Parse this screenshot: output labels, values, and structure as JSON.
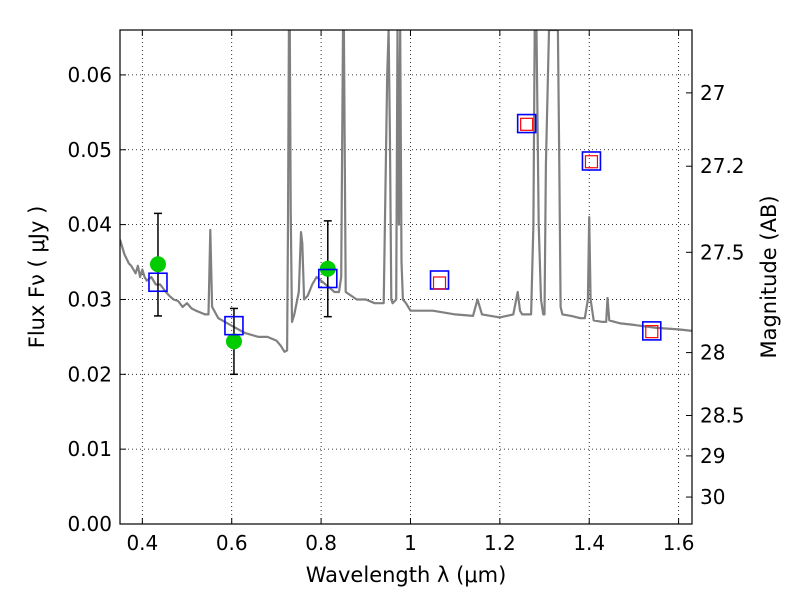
{
  "chart_data": {
    "type": "scatter",
    "title": "",
    "xlabel": "Wavelength  λ (μm)",
    "ylabel": "Flux  Fν  ( μJy )",
    "ylabel_right": "Magnitude (AB)",
    "xlim": [
      0.35,
      1.63
    ],
    "ylim": [
      0.0,
      0.066
    ],
    "grid": true,
    "x_ticks": [
      0.4,
      0.6,
      0.8,
      1.0,
      1.2,
      1.4,
      1.6
    ],
    "x_tick_labels": [
      "0.4",
      "0.6",
      "0.8",
      "1",
      "1.2",
      "1.4",
      "1.6"
    ],
    "y_ticks": [
      0.0,
      0.01,
      0.02,
      0.03,
      0.04,
      0.05,
      0.06
    ],
    "y_tick_labels": [
      "0.00",
      "0.01",
      "0.02",
      "0.03",
      "0.04",
      "0.05",
      "0.06"
    ],
    "right_ticks": [
      {
        "flux": 0.0576,
        "label": "27"
      },
      {
        "flux": 0.0478,
        "label": "27.2"
      },
      {
        "flux": 0.0363,
        "label": "27.5"
      },
      {
        "flux": 0.0229,
        "label": "28"
      },
      {
        "flux": 0.0145,
        "label": "28.5"
      },
      {
        "flux": 0.0091,
        "label": "29"
      },
      {
        "flux": 0.0036,
        "label": "30"
      }
    ],
    "series": [
      {
        "kind": "spectrum",
        "color": "#808080",
        "x": [
          0.35,
          0.36,
          0.37,
          0.375,
          0.38,
          0.385,
          0.39,
          0.395,
          0.4,
          0.405,
          0.41,
          0.42,
          0.43,
          0.44,
          0.45,
          0.46,
          0.47,
          0.48,
          0.49,
          0.5,
          0.51,
          0.52,
          0.54,
          0.548,
          0.552,
          0.556,
          0.57,
          0.6,
          0.63,
          0.66,
          0.68,
          0.7,
          0.71,
          0.718,
          0.724,
          0.726,
          0.728,
          0.73,
          0.732,
          0.735,
          0.74,
          0.75,
          0.755,
          0.758,
          0.762,
          0.77,
          0.78,
          0.79,
          0.8,
          0.81,
          0.82,
          0.83,
          0.84,
          0.845,
          0.849,
          0.851,
          0.855,
          0.88,
          0.9,
          0.92,
          0.94,
          0.948,
          0.951,
          0.954,
          0.957,
          0.96,
          0.968,
          0.971,
          0.974,
          0.977,
          0.98,
          0.983,
          0.99,
          1.0,
          1.05,
          1.1,
          1.14,
          1.15,
          1.16,
          1.18,
          1.2,
          1.23,
          1.24,
          1.245,
          1.25,
          1.27,
          1.275,
          1.278,
          1.282,
          1.287,
          1.292,
          1.297,
          1.3,
          1.303,
          1.31,
          1.33,
          1.333,
          1.336,
          1.34,
          1.36,
          1.38,
          1.39,
          1.397,
          1.4,
          1.403,
          1.41,
          1.43,
          1.438,
          1.441,
          1.445,
          1.47,
          1.5,
          1.55,
          1.6,
          1.63
        ],
        "y": [
          0.038,
          0.036,
          0.0348,
          0.0345,
          0.034,
          0.0335,
          0.0345,
          0.033,
          0.034,
          0.033,
          0.0325,
          0.033,
          0.032,
          0.032,
          0.0312,
          0.0305,
          0.03,
          0.0298,
          0.029,
          0.0295,
          0.0288,
          0.0285,
          0.028,
          0.028,
          0.0393,
          0.029,
          0.0275,
          0.0265,
          0.0255,
          0.025,
          0.025,
          0.0245,
          0.0238,
          0.023,
          0.0232,
          0.04,
          0.066,
          0.066,
          0.042,
          0.027,
          0.028,
          0.031,
          0.039,
          0.0375,
          0.03,
          0.0305,
          0.032,
          0.033,
          0.0325,
          0.032,
          0.0315,
          0.031,
          0.031,
          0.033,
          0.066,
          0.066,
          0.031,
          0.03,
          0.03,
          0.0295,
          0.0295,
          0.06,
          0.066,
          0.052,
          0.03,
          0.0295,
          0.03,
          0.066,
          0.04,
          0.066,
          0.035,
          0.03,
          0.0295,
          0.0285,
          0.0285,
          0.028,
          0.0278,
          0.03,
          0.028,
          0.0278,
          0.0276,
          0.028,
          0.031,
          0.0285,
          0.028,
          0.028,
          0.04,
          0.066,
          0.066,
          0.04,
          0.03,
          0.028,
          0.028,
          0.048,
          0.066,
          0.066,
          0.048,
          0.029,
          0.028,
          0.0278,
          0.0275,
          0.0275,
          0.03,
          0.041,
          0.03,
          0.0272,
          0.027,
          0.027,
          0.0302,
          0.0272,
          0.0268,
          0.0266,
          0.0262,
          0.026,
          0.0258
        ]
      },
      {
        "kind": "observed",
        "marker": "circle",
        "color": "#00cc00",
        "points": [
          {
            "x": 0.435,
            "y": 0.0347,
            "yerr_low": 0.0278,
            "yerr_high": 0.0415
          },
          {
            "x": 0.605,
            "y": 0.0244,
            "yerr_low": 0.02,
            "yerr_high": 0.0288
          },
          {
            "x": 0.815,
            "y": 0.0341,
            "yerr_low": 0.0277,
            "yerr_high": 0.0405
          }
        ]
      },
      {
        "kind": "model",
        "marker": "open-square",
        "color": "#0000ff",
        "x": [
          0.435,
          0.605,
          0.815,
          1.065,
          1.26,
          1.405,
          1.54
        ],
        "y": [
          0.0323,
          0.0265,
          0.0328,
          0.0326,
          0.0535,
          0.0485,
          0.0258
        ]
      },
      {
        "kind": "model-small",
        "marker": "open-square",
        "color": "#ff0000",
        "x": [
          1.065,
          1.26,
          1.405,
          1.54
        ],
        "y": [
          0.0322,
          0.0534,
          0.0484,
          0.0257
        ]
      }
    ]
  }
}
